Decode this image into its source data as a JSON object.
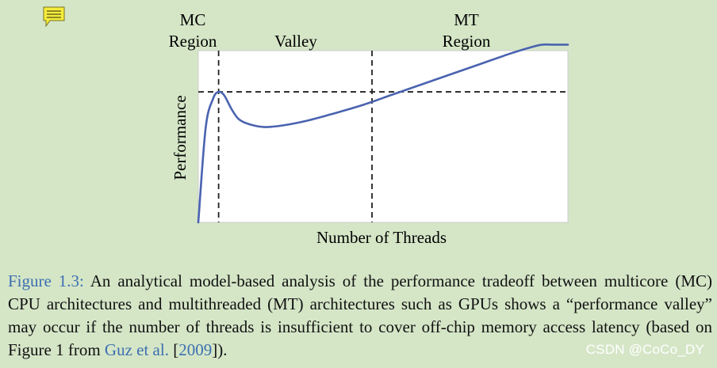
{
  "note_icon": "sticky-note-icon",
  "chart_data": {
    "type": "line",
    "title": "",
    "xlabel": "Number of Threads",
    "ylabel": "Performance",
    "grid": false,
    "region_labels": {
      "mc_line1": "MC",
      "mc_line2": "Region",
      "valley": "Valley",
      "mt_line1": "MT",
      "mt_line2": "Region"
    },
    "xlim": [
      0,
      100
    ],
    "ylim": [
      0,
      100
    ],
    "series": [
      {
        "color": "#4a63b0",
        "x": [
          0,
          2,
          4,
          5.5,
          7,
          9,
          11,
          14,
          18,
          23,
          29,
          36,
          44,
          52,
          60,
          68,
          76,
          84,
          90,
          93,
          96,
          100
        ],
        "y": [
          0,
          55,
          72,
          76,
          74,
          66,
          60,
          57,
          55.5,
          56.5,
          59,
          63,
          68,
          74,
          80,
          86,
          92,
          98,
          102,
          103.5,
          103.5,
          103.5
        ]
      }
    ],
    "reference_lines": {
      "vertical_x": [
        5.5,
        47
      ],
      "horizontal_y": [
        76
      ]
    }
  },
  "caption": {
    "figure_label": "Figure 1.3:",
    "text_part1": " An analytical model-based analysis of the performance tradeoff between multicore (MC) CPU architectures and multithreaded (MT) architectures such as GPUs shows a “performance valley” may occur if the number of threads is insufficient to cover off-chip memory access latency (based on Figure 1 from ",
    "citation_author": "Guz et al.",
    "bracket_open": " [",
    "citation_year": "2009",
    "bracket_close": "]).",
    "watermark": "CSDN @CoCo_DY"
  }
}
